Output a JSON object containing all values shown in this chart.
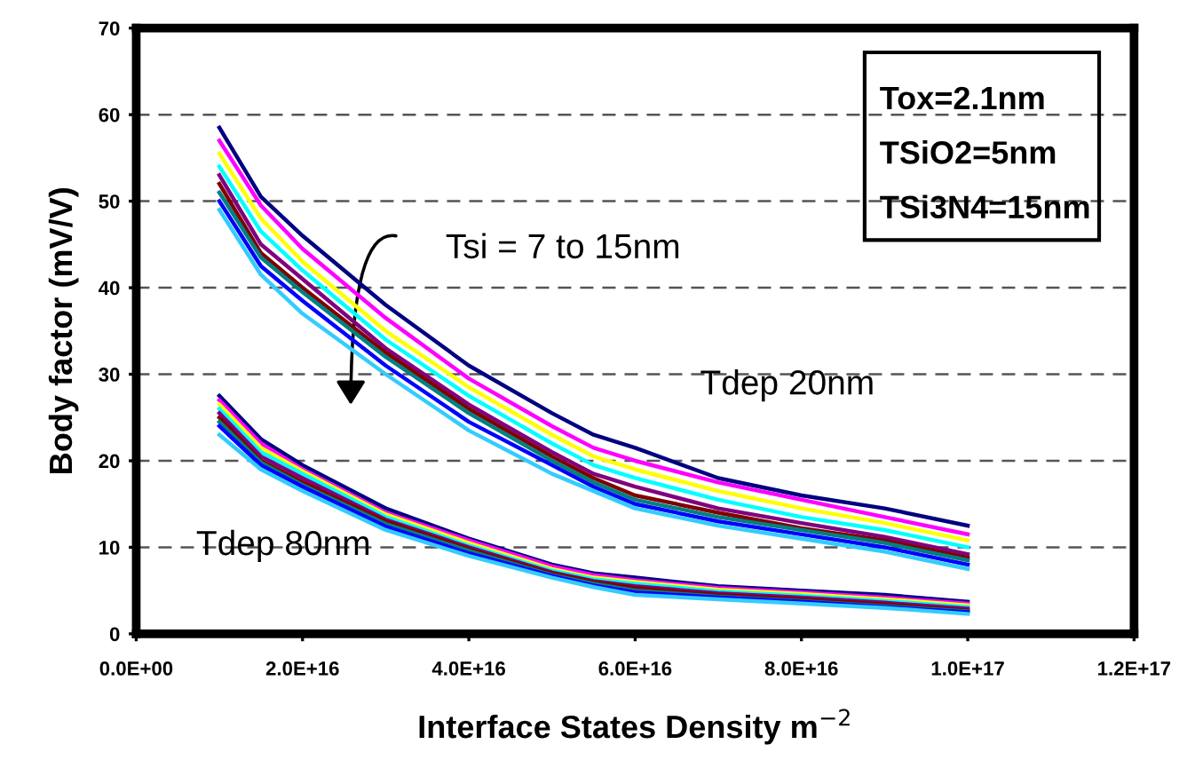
{
  "chart_data": {
    "type": "line",
    "xlabel": "Interface States Density m$^{−2}$",
    "ylabel": "Body factor (mV/V)",
    "x": [
      1e+16,
      1.5e+16,
      2e+16,
      3e+16,
      4e+16,
      5e+16,
      5.5e+16,
      6e+16,
      7e+16,
      8e+16,
      9e+16,
      1e+17
    ],
    "series": [
      {
        "color": "#000080",
        "values": [
          58.5,
          50.5,
          46,
          38,
          31,
          25.5,
          23,
          21.5,
          18,
          16,
          14.5,
          12.5
        ]
      },
      {
        "color": "#ff00ff",
        "values": [
          57,
          49.5,
          44.5,
          36.5,
          29.5,
          24,
          21.5,
          20,
          17.5,
          15.5,
          13.5,
          11.5
        ]
      },
      {
        "color": "#ffff00",
        "values": [
          55.5,
          48,
          43,
          35,
          28.5,
          23,
          20.5,
          19,
          16.5,
          14.5,
          12.8,
          10.8
        ]
      },
      {
        "color": "#00ffff",
        "values": [
          54,
          46.5,
          42,
          34,
          27.5,
          22,
          19.5,
          18,
          15.5,
          13.5,
          12,
          10
        ]
      },
      {
        "color": "#800080",
        "values": [
          53,
          45,
          41,
          33,
          26.5,
          21,
          18.5,
          17,
          14.5,
          12.8,
          11.2,
          9.2
        ]
      },
      {
        "color": "#800000",
        "values": [
          52,
          44,
          40,
          32.5,
          26,
          20.5,
          18,
          16,
          14,
          12.2,
          10.8,
          8.8
        ]
      },
      {
        "color": "#008080",
        "values": [
          51,
          43.5,
          39.5,
          32,
          25.5,
          20,
          17.5,
          15.5,
          13.5,
          12,
          10.5,
          8.5
        ]
      },
      {
        "color": "#0000ff",
        "values": [
          50,
          42.5,
          38.5,
          31,
          24.5,
          19.5,
          17,
          15,
          13,
          11.5,
          10,
          8
        ]
      },
      {
        "color": "#33ccff",
        "values": [
          49,
          41.5,
          37,
          30,
          23.5,
          18.5,
          16.5,
          14.5,
          12.5,
          11,
          9.5,
          7.5
        ]
      },
      {
        "color": "#000080",
        "values": [
          27.5,
          22.5,
          19.5,
          14.5,
          11,
          8,
          7,
          6.5,
          5.5,
          5,
          4.5,
          3.7
        ]
      },
      {
        "color": "#ff00ff",
        "values": [
          27,
          22,
          19,
          14,
          10.8,
          7.8,
          6.8,
          6.2,
          5.3,
          4.8,
          4.2,
          3.5
        ]
      },
      {
        "color": "#ffff00",
        "values": [
          26.5,
          21.5,
          18.8,
          13.8,
          10.5,
          7.5,
          6.5,
          6,
          5.1,
          4.6,
          4,
          3.3
        ]
      },
      {
        "color": "#00ffff",
        "values": [
          26,
          21,
          18.5,
          13.5,
          10.2,
          7.3,
          6.3,
          5.8,
          4.9,
          4.4,
          3.8,
          3.1
        ]
      },
      {
        "color": "#800080",
        "values": [
          25.5,
          20.5,
          18,
          13.2,
          10,
          7.1,
          6.1,
          5.5,
          4.7,
          4.2,
          3.6,
          2.9
        ]
      },
      {
        "color": "#800000",
        "values": [
          25,
          20,
          17.5,
          13,
          9.8,
          7,
          6,
          5.3,
          4.5,
          4,
          3.4,
          2.7
        ]
      },
      {
        "color": "#008080",
        "values": [
          24.5,
          19.8,
          17.2,
          12.7,
          9.6,
          6.8,
          5.8,
          5,
          4.3,
          3.8,
          3.2,
          2.6
        ]
      },
      {
        "color": "#0000ff",
        "values": [
          24,
          19.5,
          17,
          12.4,
          9.3,
          6.7,
          5.6,
          4.8,
          4.2,
          3.7,
          3.1,
          2.5
        ]
      },
      {
        "color": "#33ccff",
        "values": [
          23,
          19,
          16.5,
          12,
          9,
          6.5,
          5.4,
          4.5,
          4,
          3.5,
          3,
          2.3
        ]
      }
    ],
    "xlim": [
      0,
      1.2e+17
    ],
    "xticks": [
      {
        "value": 0,
        "label": "0.0E+00"
      },
      {
        "value": 2e+16,
        "label": "2.0E+16"
      },
      {
        "value": 4e+16,
        "label": "4.0E+16"
      },
      {
        "value": 6e+16,
        "label": "6.0E+16"
      },
      {
        "value": 8e+16,
        "label": "8.0E+16"
      },
      {
        "value": 1e+17,
        "label": "1.0E+17"
      },
      {
        "value": 1.2e+17,
        "label": "1.2E+17"
      }
    ],
    "ylim": [
      0,
      70
    ],
    "yticks": [
      0,
      10,
      20,
      30,
      40,
      50,
      60,
      70
    ],
    "grid": "y",
    "line_style": "solid",
    "marker": "none",
    "annotations": [
      "Tox=2.1nm",
      "TSiO2=5nm",
      "TSi3N4=15nm",
      "Tsi = 7 to 15nm",
      "Tdep 20nm",
      "Tdep 80nm"
    ]
  }
}
